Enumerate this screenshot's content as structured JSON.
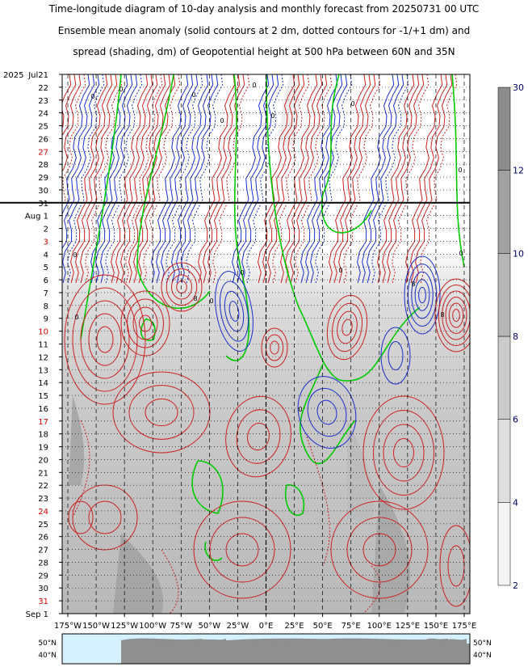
{
  "chart_data": {
    "type": "heatmap",
    "title_lines": [
      "Time-longitude diagram of 10-day analysis and monthly forecast from 20250731 00 UTC",
      "Ensemble mean anomaly (solid contours at 2 dm, dotted contours for -1/+1 dm) and",
      "spread (shading, dm) of Geopotential height at 500 hPa between 60N and 35N"
    ],
    "year_label": "2025",
    "y_labels": [
      {
        "label": "Jul21",
        "red": false
      },
      {
        "label": "22",
        "red": false
      },
      {
        "label": "23",
        "red": false
      },
      {
        "label": "24",
        "red": false
      },
      {
        "label": "25",
        "red": false
      },
      {
        "label": "26",
        "red": false
      },
      {
        "label": "27",
        "red": true
      },
      {
        "label": "28",
        "red": false
      },
      {
        "label": "29",
        "red": false
      },
      {
        "label": "30",
        "red": false
      },
      {
        "label": "31",
        "red": false
      },
      {
        "label": "Aug 1",
        "red": false
      },
      {
        "label": "2",
        "red": false
      },
      {
        "label": "3",
        "red": true
      },
      {
        "label": "4",
        "red": false
      },
      {
        "label": "5",
        "red": false
      },
      {
        "label": "6",
        "red": false
      },
      {
        "label": "7",
        "red": false
      },
      {
        "label": "8",
        "red": false
      },
      {
        "label": "9",
        "red": false
      },
      {
        "label": "10",
        "red": true
      },
      {
        "label": "11",
        "red": false
      },
      {
        "label": "12",
        "red": false
      },
      {
        "label": "13",
        "red": false
      },
      {
        "label": "14",
        "red": false
      },
      {
        "label": "15",
        "red": false
      },
      {
        "label": "16",
        "red": false
      },
      {
        "label": "17",
        "red": true
      },
      {
        "label": "18",
        "red": false
      },
      {
        "label": "19",
        "red": false
      },
      {
        "label": "20",
        "red": false
      },
      {
        "label": "21",
        "red": false
      },
      {
        "label": "22",
        "red": false
      },
      {
        "label": "23",
        "red": false
      },
      {
        "label": "24",
        "red": true
      },
      {
        "label": "25",
        "red": false
      },
      {
        "label": "26",
        "red": false
      },
      {
        "label": "27",
        "red": false
      },
      {
        "label": "28",
        "red": false
      },
      {
        "label": "29",
        "red": false
      },
      {
        "label": "30",
        "red": false
      },
      {
        "label": "31",
        "red": true
      },
      {
        "label": "Sep 1",
        "red": false
      }
    ],
    "x_labels": [
      "175°W",
      "150°W",
      "125°W",
      "100°W",
      "75°W",
      "50°W",
      "25°W",
      "0°E",
      "25°E",
      "50°E",
      "75°E",
      "100°E",
      "125°E",
      "150°E",
      "175°E"
    ],
    "x_values": [
      -175,
      -150,
      -125,
      -100,
      -75,
      -50,
      -25,
      0,
      25,
      50,
      75,
      100,
      125,
      150,
      175
    ],
    "analysis_forecast_boundary": "31",
    "colorbar": {
      "levels": [
        2,
        4,
        6,
        8,
        10,
        12,
        30
      ],
      "colors": [
        "#f4f4f4",
        "#dedede",
        "#cbcbcb",
        "#b6b6b6",
        "#a1a1a1",
        "#8c8c8c"
      ]
    },
    "map_lat_labels": [
      "50°N",
      "40°N"
    ],
    "contour_colors": {
      "positive": "#cc2222",
      "negative": "#1a2fcc",
      "zero": "#00cc00"
    },
    "contour_labels": [
      "0",
      "8"
    ]
  }
}
